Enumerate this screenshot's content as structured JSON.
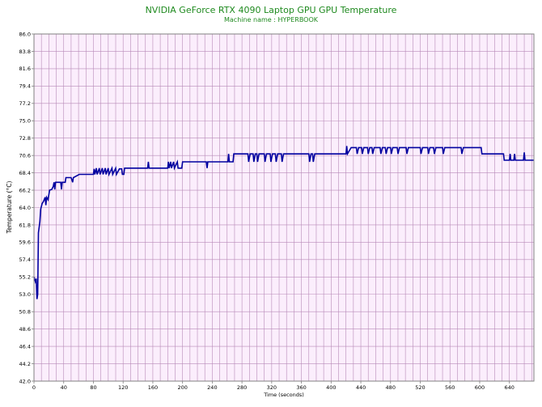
{
  "chart_data": {
    "type": "line",
    "title": "NVIDIA GeForce RTX 4090 Laptop GPU GPU Temperature",
    "subtitle": "Machine name : HYPERBOOK",
    "xlabel": "Time (seconds)",
    "ylabel": "Temperature (°C)",
    "xlim": [
      0,
      673
    ],
    "ylim": [
      42.0,
      86.0
    ],
    "grid": true,
    "x_ticks": [
      "0",
      "40",
      "80",
      "120",
      "160",
      "200",
      "240",
      "280",
      "320",
      "360",
      "400",
      "440",
      "480",
      "520",
      "560",
      "600",
      "640"
    ],
    "y_ticks": [
      "42.0",
      "44.2",
      "46.4",
      "48.6",
      "50.8",
      "53.0",
      "55.2",
      "57.4",
      "59.6",
      "61.8",
      "64.0",
      "66.2",
      "68.4",
      "70.6",
      "72.8",
      "75.0",
      "77.2",
      "79.4",
      "81.6",
      "83.8",
      "86.0"
    ],
    "series": [
      {
        "name": "",
        "color": "#0000a0",
        "points": [
          [
            0,
            55.2
          ],
          [
            2,
            54.6
          ],
          [
            3,
            55.0
          ],
          [
            4,
            52.4
          ],
          [
            5,
            53.0
          ],
          [
            6,
            60.8
          ],
          [
            8,
            62.2
          ],
          [
            9,
            63.8
          ],
          [
            11,
            64.5
          ],
          [
            13,
            64.8
          ],
          [
            15,
            65.3
          ],
          [
            16,
            64.3
          ],
          [
            17,
            65.3
          ],
          [
            19,
            65.0
          ],
          [
            21,
            66.2
          ],
          [
            24,
            66.3
          ],
          [
            26,
            66.7
          ],
          [
            27,
            67.2
          ],
          [
            28,
            66.3
          ],
          [
            29,
            67.2
          ],
          [
            36,
            67.2
          ],
          [
            37,
            66.3
          ],
          [
            38,
            67.2
          ],
          [
            42,
            67.2
          ],
          [
            43,
            67.8
          ],
          [
            50,
            67.8
          ],
          [
            52,
            67.2
          ],
          [
            53,
            67.8
          ],
          [
            61,
            68.2
          ],
          [
            80,
            68.2
          ],
          [
            81,
            68.9
          ],
          [
            82,
            68.2
          ],
          [
            84,
            69.0
          ],
          [
            85,
            68.2
          ],
          [
            88,
            69.0
          ],
          [
            89,
            68.2
          ],
          [
            92,
            69.0
          ],
          [
            93,
            68.2
          ],
          [
            96,
            69.0
          ],
          [
            97,
            68.2
          ],
          [
            100,
            69.0
          ],
          [
            101,
            68.2
          ],
          [
            105,
            69.0
          ],
          [
            106,
            68.2
          ],
          [
            110,
            69.0
          ],
          [
            111,
            68.2
          ],
          [
            115,
            68.9
          ],
          [
            118,
            68.9
          ],
          [
            119,
            68.2
          ],
          [
            121,
            68.2
          ],
          [
            122,
            69.0
          ],
          [
            153,
            69.0
          ],
          [
            154,
            69.8
          ],
          [
            155,
            69.0
          ],
          [
            180,
            69.0
          ],
          [
            181,
            69.8
          ],
          [
            182,
            69.0
          ],
          [
            184,
            69.8
          ],
          [
            185,
            69.0
          ],
          [
            188,
            69.8
          ],
          [
            189,
            69.0
          ],
          [
            193,
            69.8
          ],
          [
            194,
            69.0
          ],
          [
            199,
            69.0
          ],
          [
            200,
            69.8
          ],
          [
            232,
            69.8
          ],
          [
            233,
            69.0
          ],
          [
            234,
            69.8
          ],
          [
            261,
            69.8
          ],
          [
            262,
            70.8
          ],
          [
            263,
            69.8
          ],
          [
            268,
            69.8
          ],
          [
            269,
            70.8
          ],
          [
            288,
            70.8
          ],
          [
            289,
            69.8
          ],
          [
            291,
            70.8
          ],
          [
            295,
            70.8
          ],
          [
            296,
            69.8
          ],
          [
            298,
            70.8
          ],
          [
            300,
            70.8
          ],
          [
            301,
            69.8
          ],
          [
            303,
            70.8
          ],
          [
            310,
            70.8
          ],
          [
            311,
            69.8
          ],
          [
            313,
            70.8
          ],
          [
            318,
            70.8
          ],
          [
            319,
            69.8
          ],
          [
            321,
            70.8
          ],
          [
            325,
            70.8
          ],
          [
            326,
            69.8
          ],
          [
            328,
            70.8
          ],
          [
            333,
            70.8
          ],
          [
            334,
            69.8
          ],
          [
            336,
            70.8
          ],
          [
            370,
            70.8
          ],
          [
            371,
            69.8
          ],
          [
            373,
            70.8
          ],
          [
            375,
            70.8
          ],
          [
            376,
            69.8
          ],
          [
            378,
            70.8
          ],
          [
            420,
            70.8
          ],
          [
            421,
            71.8
          ],
          [
            422,
            70.8
          ],
          [
            427,
            71.6
          ],
          [
            434,
            71.6
          ],
          [
            435,
            70.8
          ],
          [
            437,
            71.6
          ],
          [
            441,
            71.6
          ],
          [
            442,
            70.8
          ],
          [
            444,
            71.6
          ],
          [
            449,
            71.6
          ],
          [
            450,
            70.8
          ],
          [
            452,
            71.6
          ],
          [
            455,
            71.6
          ],
          [
            456,
            70.8
          ],
          [
            458,
            71.6
          ],
          [
            466,
            71.6
          ],
          [
            467,
            70.8
          ],
          [
            469,
            71.6
          ],
          [
            473,
            71.6
          ],
          [
            474,
            70.8
          ],
          [
            476,
            71.6
          ],
          [
            480,
            71.6
          ],
          [
            481,
            70.8
          ],
          [
            483,
            71.6
          ],
          [
            489,
            71.6
          ],
          [
            490,
            70.8
          ],
          [
            492,
            71.6
          ],
          [
            501,
            71.6
          ],
          [
            502,
            70.8
          ],
          [
            504,
            71.6
          ],
          [
            520,
            71.6
          ],
          [
            521,
            70.8
          ],
          [
            523,
            71.6
          ],
          [
            530,
            71.6
          ],
          [
            531,
            70.8
          ],
          [
            533,
            71.6
          ],
          [
            538,
            71.6
          ],
          [
            539,
            70.8
          ],
          [
            541,
            71.6
          ],
          [
            550,
            71.6
          ],
          [
            551,
            70.8
          ],
          [
            553,
            71.6
          ],
          [
            575,
            71.6
          ],
          [
            576,
            70.8
          ],
          [
            578,
            71.6
          ],
          [
            602,
            71.6
          ],
          [
            603,
            70.8
          ],
          [
            632,
            70.8
          ],
          [
            633,
            70.0
          ],
          [
            640,
            70.0
          ],
          [
            641,
            70.8
          ],
          [
            642,
            70.0
          ],
          [
            646,
            70.0
          ],
          [
            647,
            70.8
          ],
          [
            648,
            70.0
          ],
          [
            659,
            70.0
          ],
          [
            660,
            71.0
          ],
          [
            661,
            70.0
          ],
          [
            673,
            70.0
          ]
        ]
      }
    ]
  }
}
